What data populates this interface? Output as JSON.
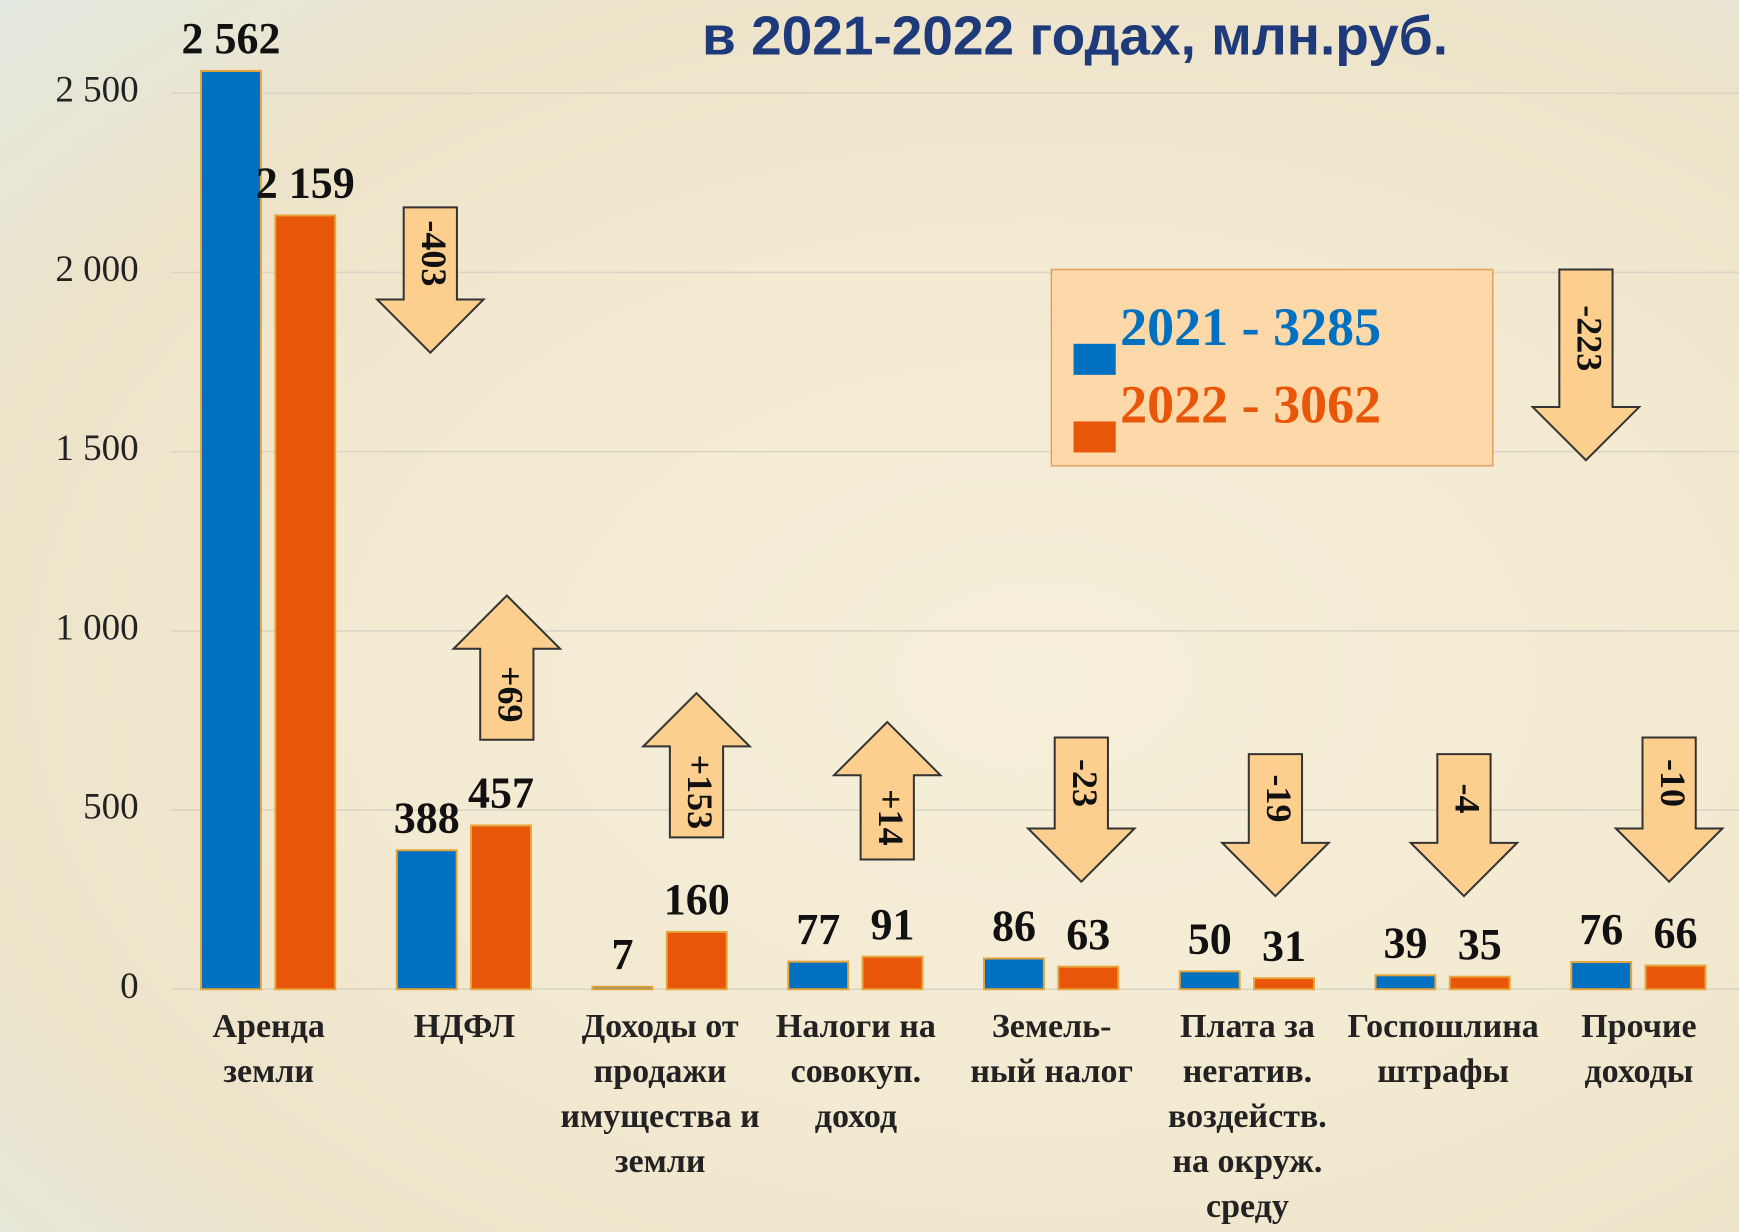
{
  "chart_data": {
    "type": "bar",
    "title": "в 2021-2022 годах, млн.руб.",
    "categories": [
      "Аренда\nземли",
      "НДФЛ",
      "Доходы от\nпродажи\nимущества и\nземли",
      "Налоги на\nсовокуп.\nдоход",
      "Земель-\nный налог",
      "Плата за\nнегатив.\nвоздейств.\nна окруж.\nсреду",
      "Госпошлина\nштрафы",
      "Прочие\nдоходы"
    ],
    "series": [
      {
        "name": "2021 - 3285",
        "color": "#0070c0",
        "values": [
          2562,
          388,
          7,
          77,
          86,
          50,
          39,
          76
        ],
        "value_labels": [
          "2 562",
          "388",
          "7",
          "77",
          "86",
          "50",
          "39",
          "76"
        ]
      },
      {
        "name": "2022 - 3062",
        "color": "#e8560a",
        "values": [
          2159,
          457,
          160,
          91,
          63,
          31,
          35,
          66
        ],
        "value_labels": [
          "2 159",
          "457",
          "160",
          "91",
          "63",
          "31",
          "35",
          "66"
        ]
      }
    ],
    "changes": [
      -403,
      69,
      153,
      14,
      -23,
      -19,
      -4,
      -10
    ],
    "change_labels": [
      "-403",
      "+69",
      "+153",
      "+14",
      "-23",
      "-19",
      "-4",
      "-10"
    ],
    "total_change": -223,
    "total_change_label": "-223",
    "ylim": [
      0,
      2750
    ],
    "yticks": [
      0,
      500,
      {
        "value": 1000,
        "label": "1 000"
      },
      {
        "value": 1500,
        "label": "1 500"
      },
      {
        "value": 2000,
        "label": "2 000"
      },
      {
        "value": 2500,
        "label": "2 500"
      }
    ],
    "grid": true
  }
}
